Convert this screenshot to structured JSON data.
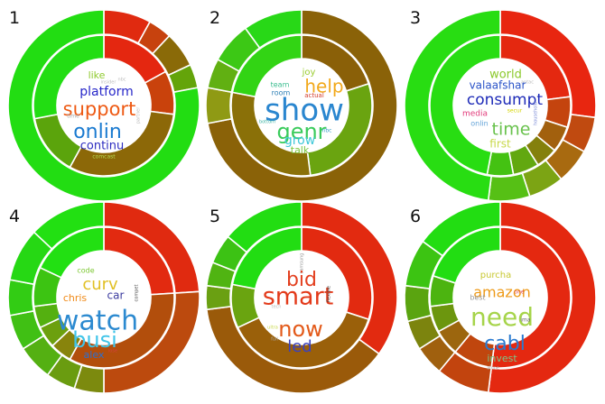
{
  "chart_data": [
    {
      "type": "sunburst",
      "panel_label": "1",
      "outer_ring": [
        {
          "value": 0.08,
          "color": "#e02a10"
        },
        {
          "value": 0.04,
          "color": "#c7420e"
        },
        {
          "value": 0.06,
          "color": "#8a6a08"
        },
        {
          "value": 0.04,
          "color": "#64a40a"
        },
        {
          "value": 0.78,
          "color": "#22dd12"
        }
      ],
      "inner_ring": [
        {
          "value": 0.17,
          "color": "#e42710"
        },
        {
          "value": 0.1,
          "color": "#c9420c"
        },
        {
          "value": 0.31,
          "color": "#8c6808"
        },
        {
          "value": 0.14,
          "color": "#5ba40c"
        },
        {
          "value": 0.28,
          "color": "#22dd12"
        }
      ],
      "words": [
        {
          "text": "like",
          "color": "#8fca2e",
          "size": 11
        },
        {
          "text": "nbc",
          "color": "#bdbdbd",
          "size": 5
        },
        {
          "text": "insider",
          "color": "#bdbdbd",
          "size": 5
        },
        {
          "text": "platform",
          "color": "#2727c9",
          "size": 14
        },
        {
          "text": "support",
          "color": "#ee5a14",
          "size": 21
        },
        {
          "text": "time",
          "color": "#a6a6a6",
          "size": 6
        },
        {
          "text": "partner",
          "color": "#bbbbbb",
          "size": 5
        },
        {
          "text": "onlin",
          "color": "#1a7ad0",
          "size": 22
        },
        {
          "text": "continu",
          "color": "#2c2cc0",
          "size": 13
        },
        {
          "text": "comcast",
          "color": "#b6dd55",
          "size": 6
        }
      ]
    },
    {
      "type": "sunburst",
      "panel_label": "2",
      "outer_ring": [
        {
          "value": 0.72,
          "color": "#8a6208"
        },
        {
          "value": 0.06,
          "color": "#8f9a14"
        },
        {
          "value": 0.05,
          "color": "#61b012"
        },
        {
          "value": 0.07,
          "color": "#3cc815"
        },
        {
          "value": 0.1,
          "color": "#28d817"
        }
      ],
      "inner_ring": [
        {
          "value": 0.2,
          "color": "#8a6008"
        },
        {
          "value": 0.28,
          "color": "#6aa410"
        },
        {
          "value": 0.3,
          "color": "#8a7008"
        },
        {
          "value": 0.22,
          "color": "#32d414"
        }
      ],
      "words": [
        {
          "text": "joy",
          "color": "#9acc30",
          "size": 10
        },
        {
          "text": "team",
          "color": "#3bbd8f",
          "size": 8
        },
        {
          "text": "help",
          "color": "#f2a91c",
          "size": 20
        },
        {
          "text": "room",
          "color": "#2d7fb5",
          "size": 8
        },
        {
          "text": "actual",
          "color": "#d23b2b",
          "size": 7
        },
        {
          "text": "show",
          "color": "#2a86cf",
          "size": 34
        },
        {
          "text": "genr",
          "color": "#3acb5b",
          "size": 24
        },
        {
          "text": "nbc",
          "color": "#3fa0c7",
          "size": 6
        },
        {
          "text": "grow",
          "color": "#3ec7d8",
          "size": 14
        },
        {
          "text": "talk",
          "color": "#7ac63c",
          "size": 11
        },
        {
          "text": "bottom",
          "color": "#3fb4a4",
          "size": 5
        }
      ]
    },
    {
      "type": "sunburst",
      "panel_label": "3",
      "outer_ring": [
        {
          "value": 0.27,
          "color": "#e82610"
        },
        {
          "value": 0.06,
          "color": "#c04a10"
        },
        {
          "value": 0.06,
          "color": "#a86a10"
        },
        {
          "value": 0.06,
          "color": "#7ca414"
        },
        {
          "value": 0.07,
          "color": "#56c015"
        },
        {
          "value": 0.48,
          "color": "#28dd12"
        }
      ],
      "inner_ring": [
        {
          "value": 0.23,
          "color": "#e42810"
        },
        {
          "value": 0.07,
          "color": "#c4440e"
        },
        {
          "value": 0.06,
          "color": "#a2600e"
        },
        {
          "value": 0.05,
          "color": "#84800c"
        },
        {
          "value": 0.06,
          "color": "#62a810"
        },
        {
          "value": 0.06,
          "color": "#44c212"
        },
        {
          "value": 0.47,
          "color": "#28dd12"
        }
      ],
      "words": [
        {
          "text": "world",
          "color": "#8bc92b",
          "size": 13
        },
        {
          "text": "aptac",
          "color": "#bbbbbb",
          "size": 5
        },
        {
          "text": "valaafshar",
          "color": "#2a53c8",
          "size": 12
        },
        {
          "text": "consumpt",
          "color": "#1e2bb8",
          "size": 17
        },
        {
          "text": "media",
          "color": "#e13a7a",
          "size": 9
        },
        {
          "text": "secur",
          "color": "#d4d400",
          "size": 6
        },
        {
          "text": "household",
          "color": "#7b8bd6",
          "size": 5
        },
        {
          "text": "onlin",
          "color": "#62a3d8",
          "size": 8
        },
        {
          "text": "time",
          "color": "#69c24d",
          "size": 19
        },
        {
          "text": "first",
          "color": "#c8d84a",
          "size": 12
        }
      ]
    },
    {
      "type": "sunburst",
      "panel_label": "4",
      "outer_ring": [
        {
          "value": 0.24,
          "color": "#e02a10"
        },
        {
          "value": 0.26,
          "color": "#bc4a0e"
        },
        {
          "value": 0.05,
          "color": "#7c8a0e"
        },
        {
          "value": 0.05,
          "color": "#6a9c10"
        },
        {
          "value": 0.06,
          "color": "#54b012"
        },
        {
          "value": 0.06,
          "color": "#40c014"
        },
        {
          "value": 0.06,
          "color": "#32cc14"
        },
        {
          "value": 0.09,
          "color": "#26d814"
        },
        {
          "value": 0.13,
          "color": "#22e012"
        }
      ],
      "inner_ring": [
        {
          "value": 0.24,
          "color": "#e22a10"
        },
        {
          "value": 0.34,
          "color": "#b24e0c"
        },
        {
          "value": 0.05,
          "color": "#88840c"
        },
        {
          "value": 0.05,
          "color": "#6ca00e"
        },
        {
          "value": 0.05,
          "color": "#54b010"
        },
        {
          "value": 0.09,
          "color": "#3cc412"
        },
        {
          "value": 0.18,
          "color": "#22e012"
        }
      ],
      "words": [
        {
          "text": "code",
          "color": "#7cc832",
          "size": 8
        },
        {
          "text": "curv",
          "color": "#e1c025",
          "size": 18
        },
        {
          "text": "car",
          "color": "#3a3a9e",
          "size": 12
        },
        {
          "text": "compet",
          "color": "#444444",
          "size": 5
        },
        {
          "text": "chris",
          "color": "#f08a18",
          "size": 11
        },
        {
          "text": "watch",
          "color": "#2c8ad0",
          "size": 30
        },
        {
          "text": "busi",
          "color": "#40c4e8",
          "size": 24
        },
        {
          "text": "alex",
          "color": "#2a6fd0",
          "size": 11
        },
        {
          "text": "lose",
          "color": "#d34040",
          "size": 5
        }
      ]
    },
    {
      "type": "sunburst",
      "panel_label": "5",
      "outer_ring": [
        {
          "value": 0.35,
          "color": "#e22a10"
        },
        {
          "value": 0.38,
          "color": "#9a5a0a"
        },
        {
          "value": 0.04,
          "color": "#6aa012"
        },
        {
          "value": 0.04,
          "color": "#50b412"
        },
        {
          "value": 0.05,
          "color": "#3cc214"
        },
        {
          "value": 0.14,
          "color": "#22dd12"
        }
      ],
      "inner_ring": [
        {
          "value": 0.3,
          "color": "#e22a10"
        },
        {
          "value": 0.38,
          "color": "#9a600a"
        },
        {
          "value": 0.1,
          "color": "#6aa410"
        },
        {
          "value": 0.22,
          "color": "#22dd12"
        }
      ],
      "words": [
        {
          "text": "samsung",
          "color": "#999999",
          "size": 5
        },
        {
          "text": "bid",
          "color": "#e34020",
          "size": 22
        },
        {
          "text": "smart",
          "color": "#e33a1a",
          "size": 27
        },
        {
          "text": "flexible",
          "color": "#444444",
          "size": 5
        },
        {
          "text": "tech",
          "color": "#bbbbbb",
          "size": 5
        },
        {
          "text": "now",
          "color": "#e35a1a",
          "size": 24
        },
        {
          "text": "led",
          "color": "#3a42c0",
          "size": 18
        },
        {
          "text": "ultra",
          "color": "#c8d84a",
          "size": 5
        },
        {
          "text": "full",
          "color": "#aaaaaa",
          "size": 5
        }
      ]
    },
    {
      "type": "sunburst",
      "panel_label": "6",
      "outer_ring": [
        {
          "value": 0.52,
          "color": "#e42810"
        },
        {
          "value": 0.09,
          "color": "#c2440e"
        },
        {
          "value": 0.05,
          "color": "#a0600e"
        },
        {
          "value": 0.05,
          "color": "#7c840e"
        },
        {
          "value": 0.06,
          "color": "#5aa410"
        },
        {
          "value": 0.08,
          "color": "#3cc412"
        },
        {
          "value": 0.15,
          "color": "#22dd12"
        }
      ],
      "inner_ring": [
        {
          "value": 0.52,
          "color": "#e42810"
        },
        {
          "value": 0.09,
          "color": "#c0460e"
        },
        {
          "value": 0.06,
          "color": "#9c660e"
        },
        {
          "value": 0.06,
          "color": "#6c960e"
        },
        {
          "value": 0.07,
          "color": "#4cb410"
        },
        {
          "value": 0.2,
          "color": "#22dd12"
        }
      ],
      "words": [
        {
          "text": "purcha",
          "color": "#c8c832",
          "size": 10
        },
        {
          "text": "amazon",
          "color": "#ee9a18",
          "size": 16
        },
        {
          "text": "best",
          "color": "#9a9a9a",
          "size": 8
        },
        {
          "text": "need",
          "color": "#a6d44a",
          "size": 28
        },
        {
          "text": "one",
          "color": "#e05050",
          "size": 6
        },
        {
          "text": "cabl",
          "color": "#2a7ad0",
          "size": 22
        },
        {
          "text": "ima",
          "color": "#666666",
          "size": 6
        },
        {
          "text": "invest",
          "color": "#7ac888",
          "size": 11
        },
        {
          "text": "alone",
          "color": "#aaaaaa",
          "size": 5
        }
      ]
    }
  ]
}
